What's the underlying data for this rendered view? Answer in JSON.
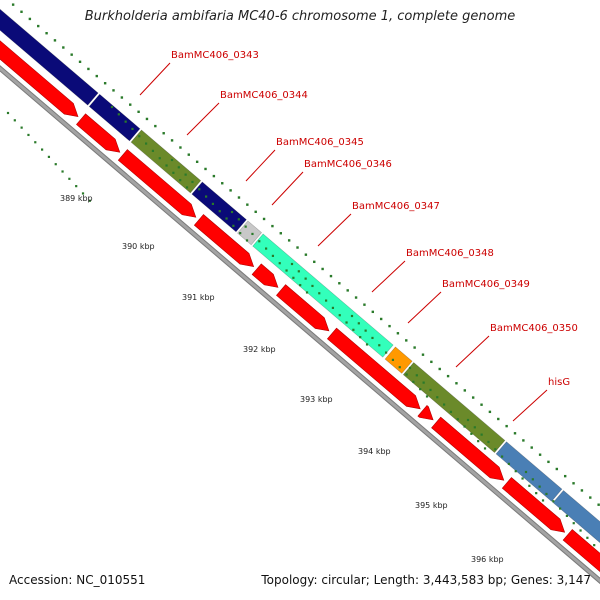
{
  "title": "Burkholderia ambifaria MC40-6 chromosome 1, complete genome",
  "accession": "Accession: NC_010551",
  "summary": "Topology: circular; Length: 3,443,583 bp; Genes: 3,147",
  "colors": {
    "backbone": "#a3a3a3",
    "cds_arrow": "#ff0000",
    "tick": "#2a7a2a",
    "label": "#cc0000",
    "leader": "#cc0000"
  },
  "genes": [
    {
      "name": "",
      "color": "#2020a8"
    },
    {
      "name": "BamMC406_0343",
      "color": "#0a0a78"
    },
    {
      "name": "BamMC406_0344",
      "color": "#6b8a2a"
    },
    {
      "name": "BamMC406_0345",
      "color": "#0a0a78"
    },
    {
      "name": "BamMC406_0346",
      "color": "#c8c8c8"
    },
    {
      "name": "BamMC406_0347",
      "color": "#33ffbb"
    },
    {
      "name": "BamMC406_0348",
      "color": "#ff9900"
    },
    {
      "name": "BamMC406_0349",
      "color": "#6b8a2a"
    },
    {
      "name": "BamMC406_0350",
      "color": "#4a7fb5"
    },
    {
      "name": "hisG",
      "color": "#4a7fb5"
    }
  ],
  "kbp_labels": [
    "389 kbp",
    "390 kbp",
    "391 kbp",
    "392 kbp",
    "393 kbp",
    "394 kbp",
    "395 kbp",
    "396 kbp"
  ]
}
